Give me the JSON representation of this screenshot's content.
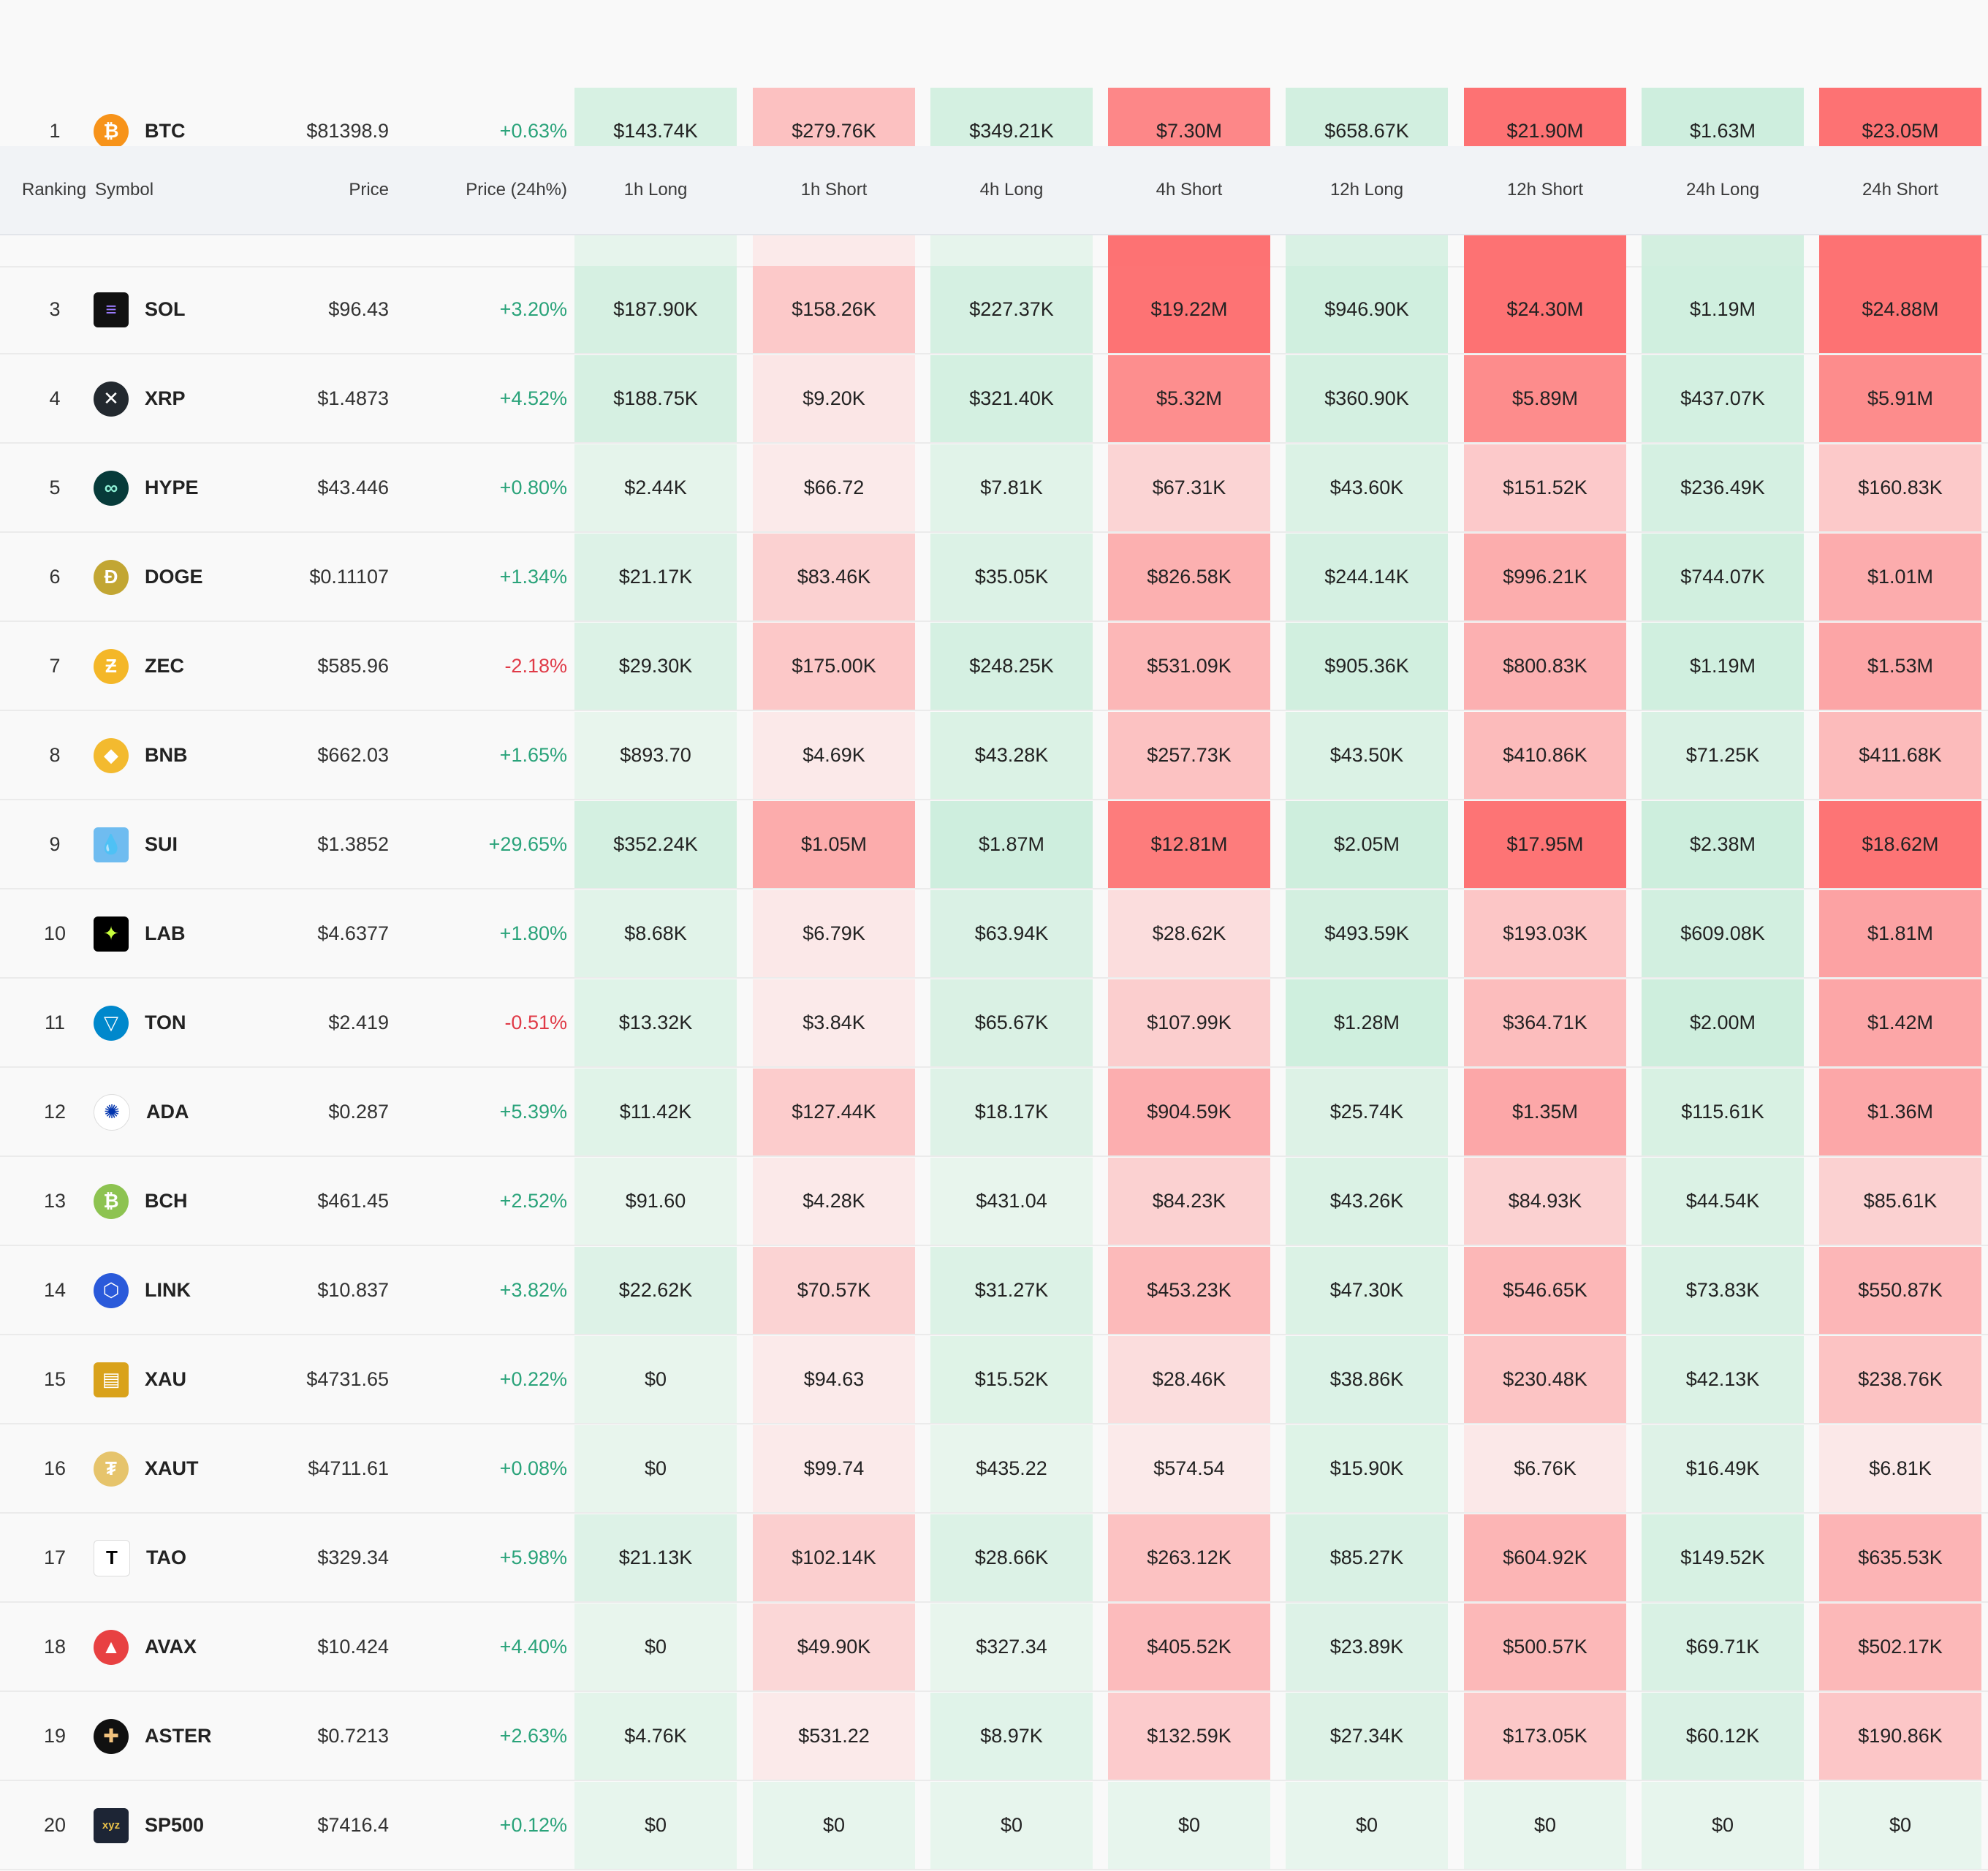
{
  "header": {
    "ranking": "Ranking",
    "symbol": "Symbol",
    "price": "Price",
    "price_change": "Price (24h%)",
    "columns": [
      "1h Long",
      "1h Short",
      "4h Long",
      "4h Short",
      "12h Long",
      "12h Short",
      "24h Long",
      "24h Short"
    ]
  },
  "colors": {
    "positive": "#2aa37a",
    "negative": "#e03a47",
    "long_light": "#e6f4ec",
    "short_light": "#fbeaea",
    "short_strong": "#fd7273"
  },
  "rows": [
    {
      "rank": "1",
      "symbol": "BTC",
      "icon": "bitcoin-icon",
      "price": "$81398.9",
      "change": "+0.63%",
      "vals": [
        "$143.74K",
        "$279.76K",
        "$349.21K",
        "$7.30M",
        "$658.67K",
        "$21.90M",
        "$1.63M",
        "$23.05M"
      ]
    },
    {
      "rank": "3",
      "symbol": "SOL",
      "icon": "solana-icon",
      "price": "$96.43",
      "change": "+3.20%",
      "vals": [
        "$187.90K",
        "$158.26K",
        "$227.37K",
        "$19.22M",
        "$946.90K",
        "$24.30M",
        "$1.19M",
        "$24.88M"
      ]
    },
    {
      "rank": "4",
      "symbol": "XRP",
      "icon": "xrp-icon",
      "price": "$1.4873",
      "change": "+4.52%",
      "vals": [
        "$188.75K",
        "$9.20K",
        "$321.40K",
        "$5.32M",
        "$360.90K",
        "$5.89M",
        "$437.07K",
        "$5.91M"
      ]
    },
    {
      "rank": "5",
      "symbol": "HYPE",
      "icon": "hyperliquid-icon",
      "price": "$43.446",
      "change": "+0.80%",
      "vals": [
        "$2.44K",
        "$66.72",
        "$7.81K",
        "$67.31K",
        "$43.60K",
        "$151.52K",
        "$236.49K",
        "$160.83K"
      ]
    },
    {
      "rank": "6",
      "symbol": "DOGE",
      "icon": "dogecoin-icon",
      "price": "$0.11107",
      "change": "+1.34%",
      "vals": [
        "$21.17K",
        "$83.46K",
        "$35.05K",
        "$826.58K",
        "$244.14K",
        "$996.21K",
        "$744.07K",
        "$1.01M"
      ]
    },
    {
      "rank": "7",
      "symbol": "ZEC",
      "icon": "zcash-icon",
      "price": "$585.96",
      "change": "-2.18%",
      "vals": [
        "$29.30K",
        "$175.00K",
        "$248.25K",
        "$531.09K",
        "$905.36K",
        "$800.83K",
        "$1.19M",
        "$1.53M"
      ]
    },
    {
      "rank": "8",
      "symbol": "BNB",
      "icon": "bnb-icon",
      "price": "$662.03",
      "change": "+1.65%",
      "vals": [
        "$893.70",
        "$4.69K",
        "$43.28K",
        "$257.73K",
        "$43.50K",
        "$410.86K",
        "$71.25K",
        "$411.68K"
      ]
    },
    {
      "rank": "9",
      "symbol": "SUI",
      "icon": "sui-icon",
      "price": "$1.3852",
      "change": "+29.65%",
      "vals": [
        "$352.24K",
        "$1.05M",
        "$1.87M",
        "$12.81M",
        "$2.05M",
        "$17.95M",
        "$2.38M",
        "$18.62M"
      ]
    },
    {
      "rank": "10",
      "symbol": "LAB",
      "icon": "lab-icon",
      "price": "$4.6377",
      "change": "+1.80%",
      "vals": [
        "$8.68K",
        "$6.79K",
        "$63.94K",
        "$28.62K",
        "$493.59K",
        "$193.03K",
        "$609.08K",
        "$1.81M"
      ]
    },
    {
      "rank": "11",
      "symbol": "TON",
      "icon": "toncoin-icon",
      "price": "$2.419",
      "change": "-0.51%",
      "vals": [
        "$13.32K",
        "$3.84K",
        "$65.67K",
        "$107.99K",
        "$1.28M",
        "$364.71K",
        "$2.00M",
        "$1.42M"
      ]
    },
    {
      "rank": "12",
      "symbol": "ADA",
      "icon": "cardano-icon",
      "price": "$0.287",
      "change": "+5.39%",
      "vals": [
        "$11.42K",
        "$127.44K",
        "$18.17K",
        "$904.59K",
        "$25.74K",
        "$1.35M",
        "$115.61K",
        "$1.36M"
      ]
    },
    {
      "rank": "13",
      "symbol": "BCH",
      "icon": "bitcoin-cash-icon",
      "price": "$461.45",
      "change": "+2.52%",
      "vals": [
        "$91.60",
        "$4.28K",
        "$431.04",
        "$84.23K",
        "$43.26K",
        "$84.93K",
        "$44.54K",
        "$85.61K"
      ]
    },
    {
      "rank": "14",
      "symbol": "LINK",
      "icon": "chainlink-icon",
      "price": "$10.837",
      "change": "+3.82%",
      "vals": [
        "$22.62K",
        "$70.57K",
        "$31.27K",
        "$453.23K",
        "$47.30K",
        "$546.65K",
        "$73.83K",
        "$550.87K"
      ]
    },
    {
      "rank": "15",
      "symbol": "XAU",
      "icon": "gold-bars-icon",
      "price": "$4731.65",
      "change": "+0.22%",
      "vals": [
        "$0",
        "$94.63",
        "$15.52K",
        "$28.46K",
        "$38.86K",
        "$230.48K",
        "$42.13K",
        "$238.76K"
      ]
    },
    {
      "rank": "16",
      "symbol": "XAUT",
      "icon": "tether-gold-icon",
      "price": "$4711.61",
      "change": "+0.08%",
      "vals": [
        "$0",
        "$99.74",
        "$435.22",
        "$574.54",
        "$15.90K",
        "$6.76K",
        "$16.49K",
        "$6.81K"
      ]
    },
    {
      "rank": "17",
      "symbol": "TAO",
      "icon": "bittensor-icon",
      "price": "$329.34",
      "change": "+5.98%",
      "vals": [
        "$21.13K",
        "$102.14K",
        "$28.66K",
        "$263.12K",
        "$85.27K",
        "$604.92K",
        "$149.52K",
        "$635.53K"
      ]
    },
    {
      "rank": "18",
      "symbol": "AVAX",
      "icon": "avalanche-icon",
      "price": "$10.424",
      "change": "+4.40%",
      "vals": [
        "$0",
        "$49.90K",
        "$327.34",
        "$405.52K",
        "$23.89K",
        "$500.57K",
        "$69.71K",
        "$502.17K"
      ]
    },
    {
      "rank": "19",
      "symbol": "ASTER",
      "icon": "aster-icon",
      "price": "$0.7213",
      "change": "+2.63%",
      "vals": [
        "$4.76K",
        "$531.22",
        "$8.97K",
        "$132.59K",
        "$27.34K",
        "$173.05K",
        "$60.12K",
        "$190.86K"
      ]
    },
    {
      "rank": "20",
      "symbol": "SP500",
      "icon": "xyz-icon",
      "price": "$7416.4",
      "change": "+0.12%",
      "vals": [
        "$0",
        "$0",
        "$0",
        "$0",
        "$0",
        "$0",
        "$0",
        "$0"
      ]
    }
  ]
}
